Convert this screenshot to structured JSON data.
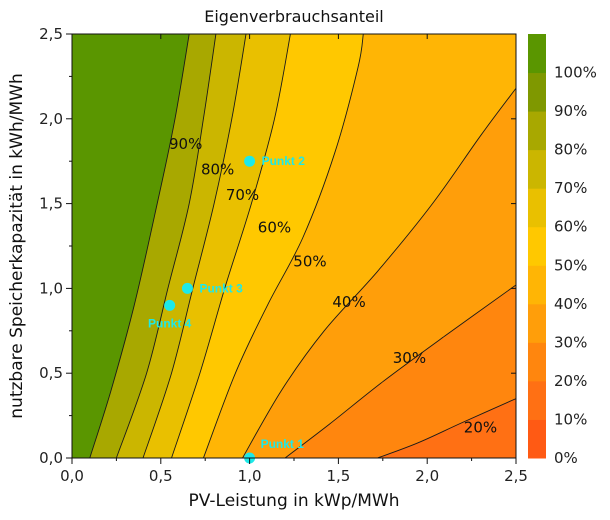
{
  "chart_data": {
    "type": "heatmap",
    "title": "Eigenverbrauchsanteil",
    "xlabel": "PV-Leistung in kWp/MWh",
    "ylabel": "nutzbare Speicherkapazität in kWh/MWh",
    "xlim": [
      0,
      2.5
    ],
    "ylim": [
      0,
      2.5
    ],
    "x_ticks": [
      "0,0",
      "0,5",
      "1,0",
      "1,5",
      "2,0",
      "2,5"
    ],
    "y_ticks": [
      "0,0",
      "0,5",
      "1,0",
      "1,5",
      "2,0",
      "2,5"
    ],
    "colorbar": {
      "levels": [
        0,
        10,
        20,
        30,
        40,
        50,
        60,
        70,
        80,
        90,
        100
      ],
      "labels": [
        "0%",
        "10%",
        "20%",
        "30%",
        "40%",
        "50%",
        "60%",
        "70%",
        "80%",
        "90%",
        "100%"
      ],
      "band_colors": [
        "#ff5a14",
        "#ff7014",
        "#ff860e",
        "#ff9e0a",
        "#ffb505",
        "#ffc800",
        "#e9c000",
        "#cbb600",
        "#a8a800",
        "#7f9800",
        "#5a9600"
      ]
    },
    "contours": [
      {
        "level": 90,
        "label": "90%",
        "label_pos": [
          0.64,
          1.85
        ],
        "points": [
          [
            0.1,
            0.0
          ],
          [
            0.22,
            0.4
          ],
          [
            0.35,
            0.9
          ],
          [
            0.48,
            1.5
          ],
          [
            0.58,
            2.0
          ],
          [
            0.66,
            2.5
          ]
        ]
      },
      {
        "level": 80,
        "label": "80%",
        "label_pos": [
          0.82,
          1.7
        ],
        "points": [
          [
            0.25,
            0.0
          ],
          [
            0.42,
            0.5
          ],
          [
            0.54,
            1.0
          ],
          [
            0.66,
            1.5
          ],
          [
            0.74,
            2.0
          ],
          [
            0.81,
            2.5
          ]
        ]
      },
      {
        "level": 70,
        "label": "70%",
        "label_pos": [
          0.96,
          1.55
        ],
        "points": [
          [
            0.4,
            0.0
          ],
          [
            0.56,
            0.5
          ],
          [
            0.68,
            1.0
          ],
          [
            0.8,
            1.5
          ],
          [
            0.9,
            2.0
          ],
          [
            0.98,
            2.5
          ]
        ]
      },
      {
        "level": 60,
        "label": "60%",
        "label_pos": [
          1.14,
          1.36
        ],
        "points": [
          [
            0.56,
            0.0
          ],
          [
            0.72,
            0.5
          ],
          [
            0.86,
            1.0
          ],
          [
            1.01,
            1.5
          ],
          [
            1.14,
            2.0
          ],
          [
            1.23,
            2.5
          ]
        ]
      },
      {
        "level": 50,
        "label": "50%",
        "label_pos": [
          1.34,
          1.16
        ],
        "points": [
          [
            0.74,
            0.0
          ],
          [
            0.92,
            0.5
          ],
          [
            1.1,
            0.9
          ],
          [
            1.3,
            1.3
          ],
          [
            1.48,
            1.8
          ],
          [
            1.61,
            2.3
          ],
          [
            1.64,
            2.5
          ]
        ]
      },
      {
        "level": 40,
        "label": "40%",
        "label_pos": [
          1.56,
          0.92
        ],
        "points": [
          [
            0.96,
            0.0
          ],
          [
            1.18,
            0.4
          ],
          [
            1.42,
            0.75
          ],
          [
            1.72,
            1.1
          ],
          [
            2.03,
            1.5
          ],
          [
            2.3,
            1.9
          ],
          [
            2.5,
            2.18
          ]
        ]
      },
      {
        "level": 30,
        "label": "30%",
        "label_pos": [
          1.9,
          0.59
        ],
        "points": [
          [
            1.2,
            0.0
          ],
          [
            1.45,
            0.2
          ],
          [
            1.75,
            0.45
          ],
          [
            2.1,
            0.72
          ],
          [
            2.5,
            1.02
          ]
        ]
      },
      {
        "level": 20,
        "label": "20%",
        "label_pos": [
          2.3,
          0.18
        ],
        "points": [
          [
            1.72,
            0.0
          ],
          [
            1.95,
            0.09
          ],
          [
            2.2,
            0.21
          ],
          [
            2.5,
            0.35
          ]
        ]
      }
    ],
    "points": [
      {
        "name": "Punkt 1",
        "x": 1.0,
        "y": 0.0
      },
      {
        "name": "Punkt 2",
        "x": 1.0,
        "y": 1.75
      },
      {
        "name": "Punkt 3",
        "x": 0.65,
        "y": 1.0
      },
      {
        "name": "Punkt 4",
        "x": 0.55,
        "y": 0.9
      }
    ],
    "grid": false,
    "legend": "right"
  }
}
